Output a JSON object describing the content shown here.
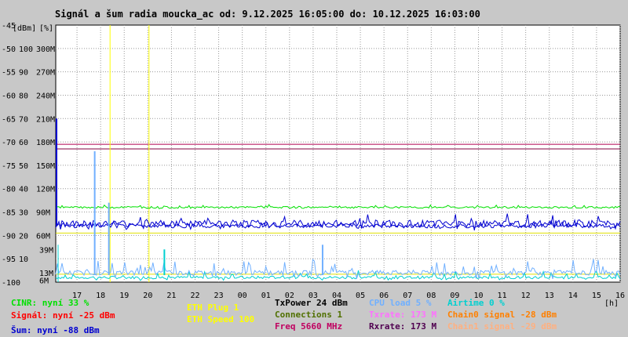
{
  "chart_data": {
    "type": "line",
    "title": "Signál a šum radia moucka_ac od: 9.12.2025 16:05:00 do: 10.12.2025 16:03:00",
    "y_unit_labels": [
      "[dBm]",
      "[%]"
    ],
    "x_unit": "[h]",
    "x_ticks": [
      "17",
      "18",
      "19",
      "20",
      "21",
      "22",
      "23",
      "00",
      "01",
      "02",
      "03",
      "04",
      "05",
      "06",
      "07",
      "08",
      "09",
      "10",
      "11",
      "12",
      "13",
      "14",
      "15",
      "16"
    ],
    "y_ticks_dbm": [
      -45,
      -50,
      -55,
      -60,
      -65,
      -70,
      -75,
      -80,
      -85,
      -90,
      -95,
      -100
    ],
    "y_ticks_pct": [
      "",
      "100",
      "90",
      "80",
      "70",
      "60",
      "50",
      "40",
      "30",
      "20",
      "10",
      ""
    ],
    "y_ticks_rate": [
      "",
      "300M",
      "270M",
      "240M",
      "210M",
      "180M",
      "150M",
      "120M",
      "90M",
      "60M",
      "",
      ""
    ],
    "y_small_rates": [
      "39M",
      "13M",
      "6M"
    ],
    "ylim_dbm": [
      -100,
      -45
    ],
    "xlim_hours": [
      16.1,
      40.0
    ],
    "series": [
      {
        "name": "Signál",
        "color": "#0000d0",
        "level": -87.5,
        "noise": 1.5
      },
      {
        "name": "Šum",
        "color": "#0000d0",
        "level": -88.0
      },
      {
        "name": "CINR",
        "color": "#00e000",
        "level": -84.0
      },
      {
        "name": "CPU load",
        "color": "#70b0ff",
        "level": -98.0
      },
      {
        "name": "Airtime",
        "color": "#00d0d0",
        "level": -99.0
      }
    ],
    "horizontal_lines": [
      {
        "value": -70.5,
        "color": "#b00050"
      },
      {
        "value": -71.5,
        "color": "#800040"
      },
      {
        "value": -89.5,
        "color": "#e0e000"
      },
      {
        "value": -98.3,
        "color": "#e0e000"
      }
    ],
    "vertical_markers": [
      {
        "hour": 18.4,
        "color": "#ffff00"
      },
      {
        "hour": 20.05,
        "color": "#ffff00"
      }
    ],
    "spikes": [
      {
        "hour": 17.75,
        "value": -72,
        "color": "#70b0ff"
      },
      {
        "hour": 18.35,
        "value": -83,
        "color": "#70b0ff"
      },
      {
        "hour": 20.7,
        "value": -93,
        "color": "#00d0d0"
      },
      {
        "hour": 3.4,
        "value": -92,
        "color": "#70b0ff"
      }
    ]
  },
  "legend": {
    "cinr": "CINR: nyní 33 %",
    "signal": "Signál: nyní -25 dBm",
    "sum": "Šum: nyní -88 dBm",
    "eth_plug": "ETH Plug 1",
    "eth_speed": "ETH Speed 100",
    "txpower": "TxPower 24 dBm",
    "connections": "Connections 1",
    "freq": "Freq 5660 MHz",
    "cpu": "CPU load 5 %",
    "txrate": "Txrate: 173 M",
    "rxrate": "Rxrate: 173 M",
    "airtime": "Airtime 0 %",
    "chain0": "Chain0 signal -28 dBm",
    "chain1": "Chain1 signal -29 dBm"
  },
  "colors": {
    "background": "#c8c8c8",
    "plot_background": "#ffffff",
    "grid": "#999999",
    "cinr": "#00e000",
    "signal": "#ff0000",
    "sum": "#0000d0",
    "eth": "#ffff00",
    "txpower": "#000000",
    "connections": "#507000",
    "freq": "#c00060",
    "cpu": "#70b0ff",
    "txrate": "#ff70ff",
    "rxrate": "#500050",
    "airtime": "#00d0d0",
    "chain0": "#ff8000",
    "chain1": "#ffb080"
  }
}
